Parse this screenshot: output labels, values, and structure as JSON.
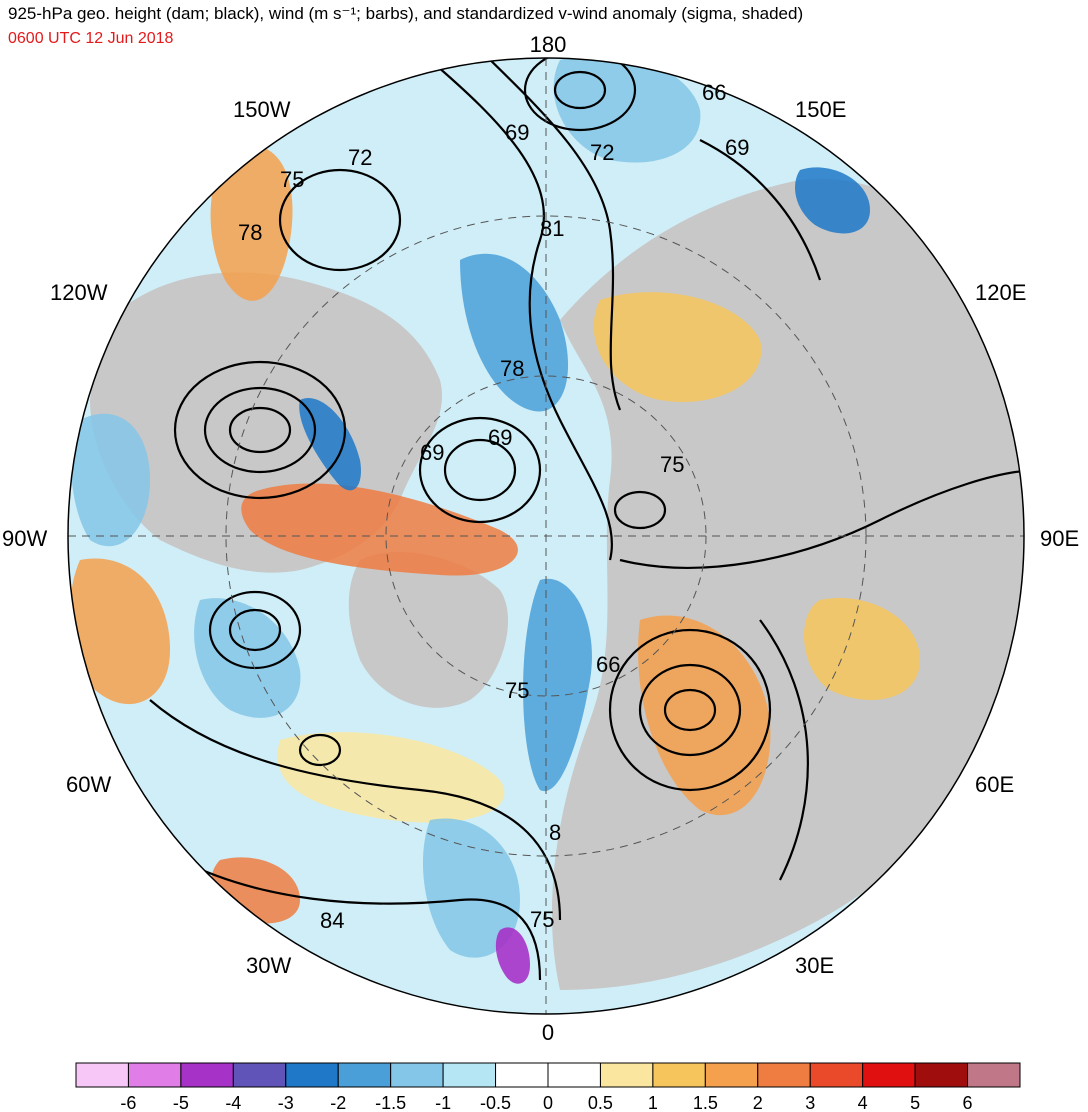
{
  "header": {
    "title": "925-hPa geo. height (dam; black), wind (m s⁻¹; barbs), and standardized v-wind anomaly (sigma, shaded)",
    "valid_time": "0600 UTC 12 Jun 2018",
    "valid_time_color": "#e31a1c"
  },
  "map": {
    "projection": "north-polar-stereographic",
    "land_color": "#c8c8c8",
    "longitude_labels": [
      "180",
      "150E",
      "120E",
      "90E",
      "60E",
      "30E",
      "0",
      "30W",
      "60W",
      "90W",
      "120W",
      "150W"
    ],
    "height_contour_labels": [
      "66",
      "69",
      "72",
      "81",
      "69",
      "75",
      "72",
      "78",
      "78",
      "69",
      "69",
      "75",
      "66",
      "75",
      "8",
      "84",
      "75"
    ]
  },
  "colorbar": {
    "labels": [
      "-6",
      "-5",
      "-4",
      "-3",
      "-2",
      "-1.5",
      "-1",
      "-0.5",
      "0",
      "0.5",
      "1",
      "1.5",
      "2",
      "3",
      "4",
      "5",
      "6"
    ],
    "colors": [
      "#f7c8f7",
      "#e07de7",
      "#a632c8",
      "#6054b8",
      "#1f78c8",
      "#4a9fd8",
      "#84c6e8",
      "#b4e6f4",
      "#ffffff",
      "#ffffff",
      "#fbe6a0",
      "#f6c55b",
      "#f4a04c",
      "#ef7d42",
      "#ea4a2a",
      "#e01010",
      "#a00d0d",
      "#c07888"
    ]
  }
}
